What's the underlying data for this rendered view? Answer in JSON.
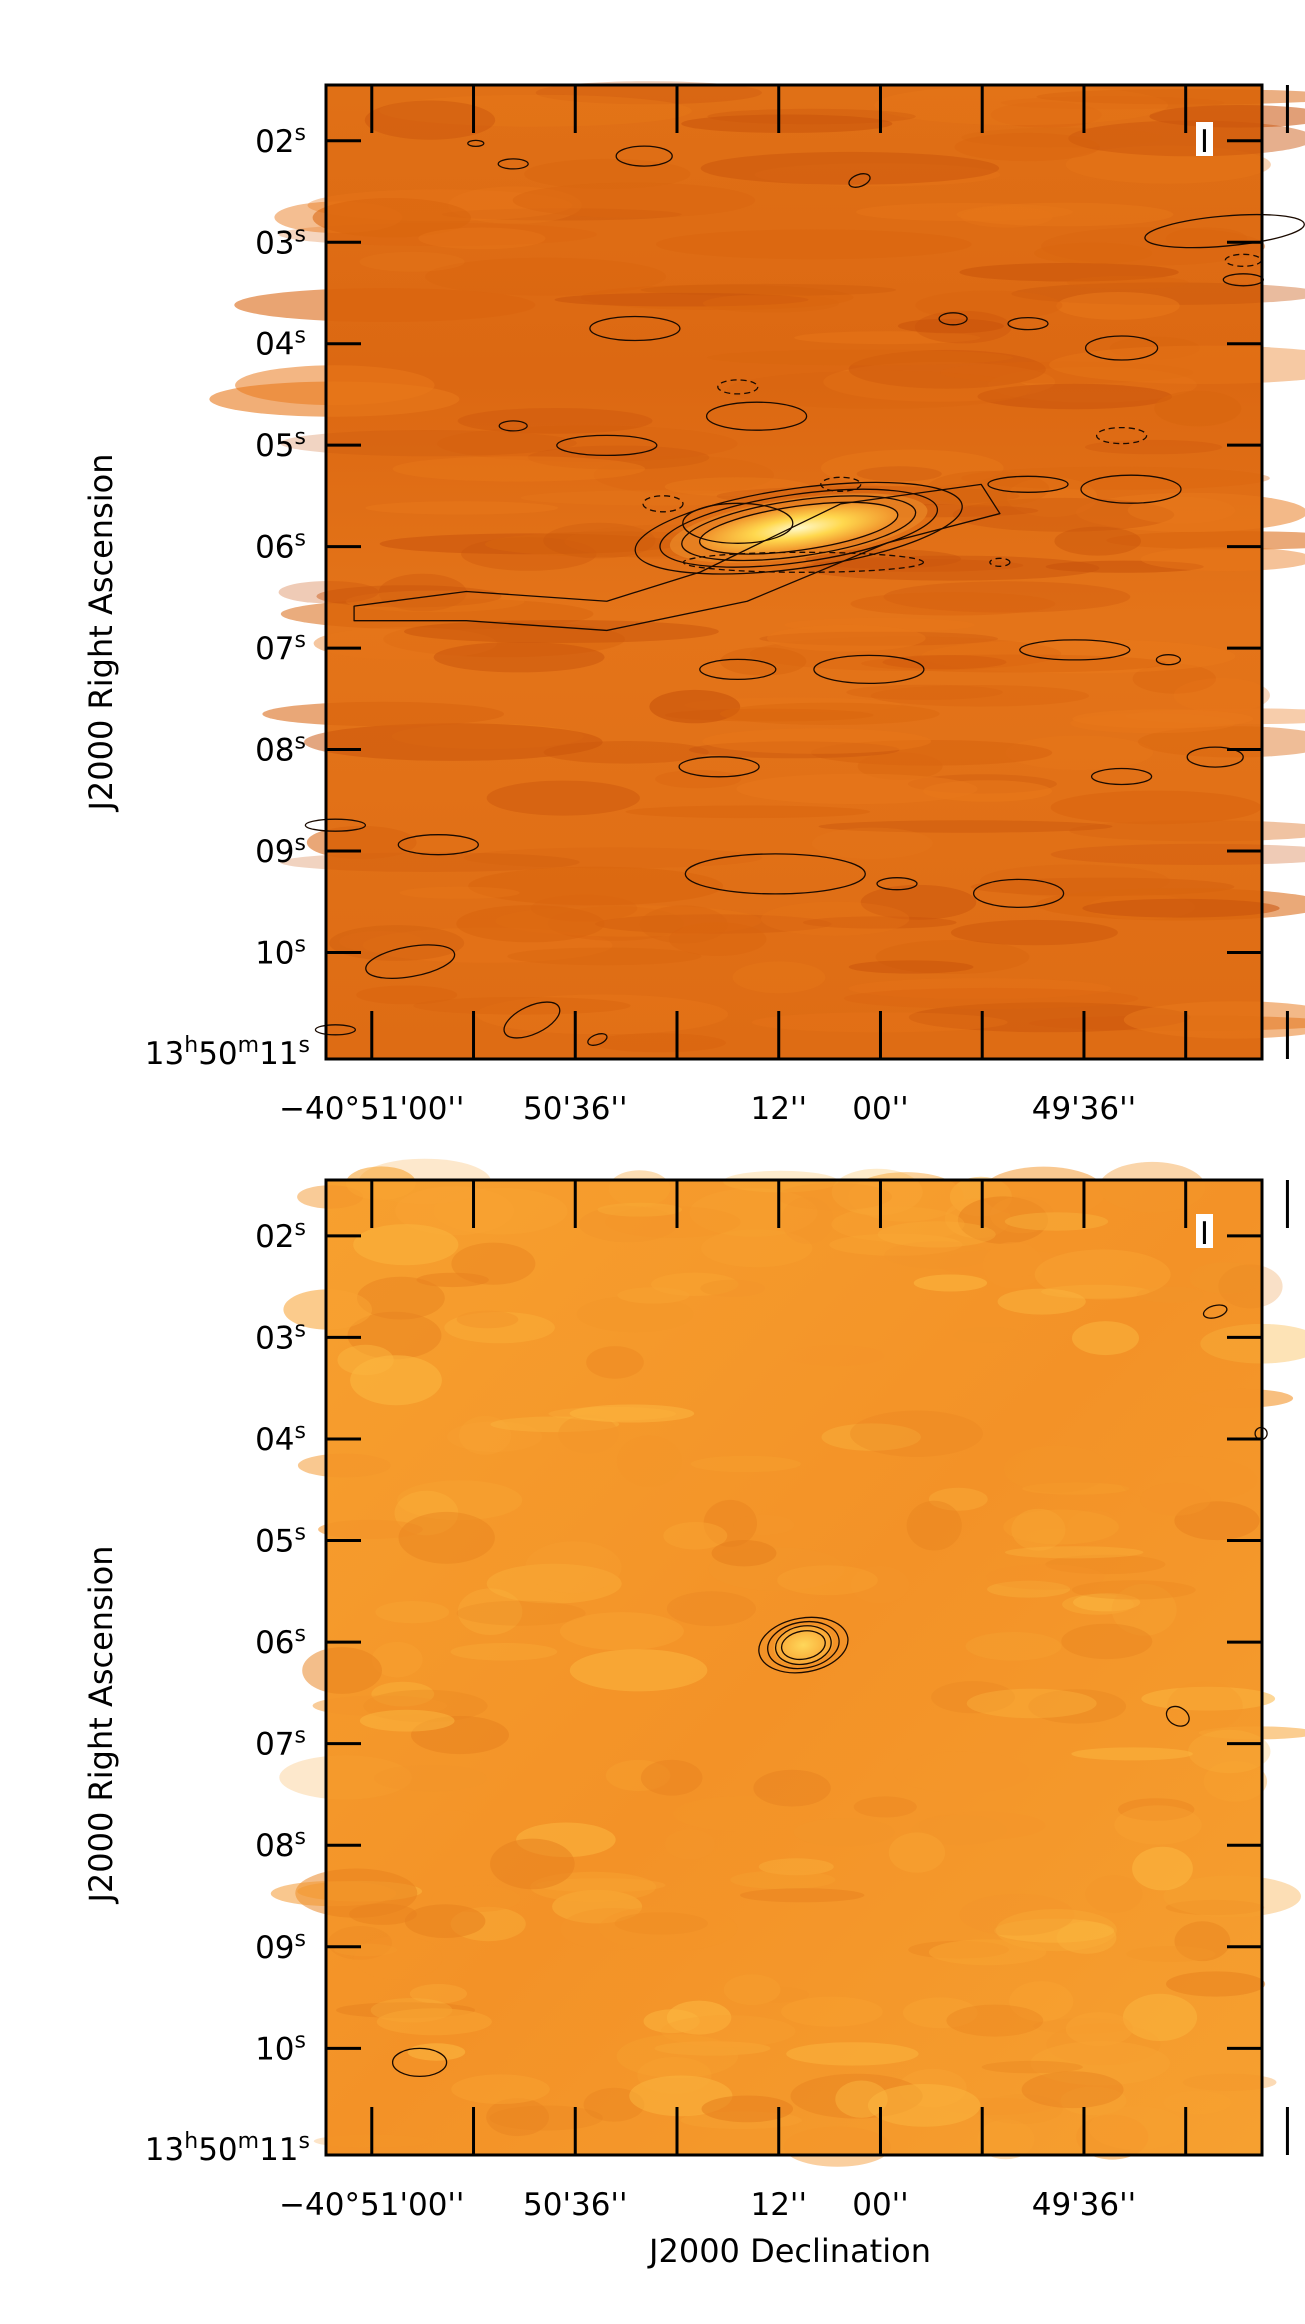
{
  "figure": {
    "panels": [
      {
        "id": "top",
        "stokes_label": "I",
        "ra_tick_labels": [
          {
            "main": "02",
            "sup": "s"
          },
          {
            "main": "03",
            "sup": "s"
          },
          {
            "main": "04",
            "sup": "s"
          },
          {
            "main": "05",
            "sup": "s"
          },
          {
            "main": "06",
            "sup": "s"
          },
          {
            "main": "07",
            "sup": "s"
          },
          {
            "main": "08",
            "sup": "s"
          },
          {
            "main": "09",
            "sup": "s"
          },
          {
            "main": "10",
            "sup": "s"
          }
        ],
        "ra_origin_label": {
          "a": "13",
          "a_sup": "h",
          "b": "50",
          "b_sup": "m",
          "c": "11",
          "c_sup": "s"
        },
        "dec_tick_labels": [
          "−40°51'00''",
          "50'36''",
          "12''",
          "00''",
          "49'36''"
        ],
        "y_axis_title": "J2000 Right Ascension",
        "x_axis_title": "",
        "colormap": [
          "#c9540c",
          "#d9650f",
          "#e8781a",
          "#f4a02d",
          "#ffd24a",
          "#fff3b0"
        ],
        "source_morphology": "extended, elongated with surrounding contours and dashed negative contours"
      },
      {
        "id": "bottom",
        "stokes_label": "I",
        "ra_tick_labels": [
          {
            "main": "02",
            "sup": "s"
          },
          {
            "main": "03",
            "sup": "s"
          },
          {
            "main": "04",
            "sup": "s"
          },
          {
            "main": "05",
            "sup": "s"
          },
          {
            "main": "06",
            "sup": "s"
          },
          {
            "main": "07",
            "sup": "s"
          },
          {
            "main": "08",
            "sup": "s"
          },
          {
            "main": "09",
            "sup": "s"
          },
          {
            "main": "10",
            "sup": "s"
          }
        ],
        "ra_origin_label": {
          "a": "13",
          "a_sup": "h",
          "b": "50",
          "b_sup": "m",
          "c": "11",
          "c_sup": "s"
        },
        "dec_tick_labels": [
          "−40°51'00''",
          "50'36''",
          "12''",
          "00''",
          "49'36''"
        ],
        "y_axis_title": "J2000 Right Ascension",
        "x_axis_title": "J2000 Declination",
        "colormap": [
          "#e8821f",
          "#f3952a",
          "#f8a332",
          "#fbb63f"
        ],
        "source_morphology": "compact, with few closed contours"
      }
    ]
  }
}
